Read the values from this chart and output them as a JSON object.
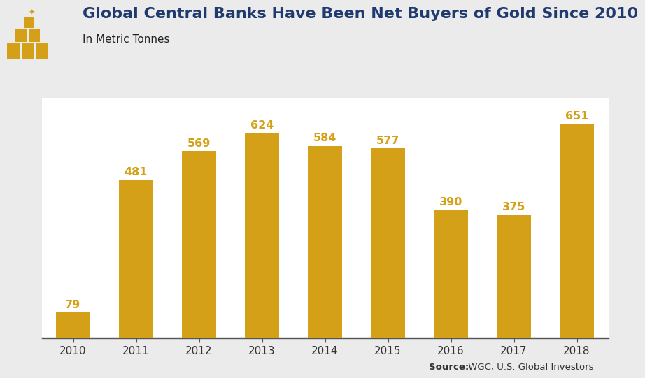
{
  "title": "Global Central Banks Have Been Net Buyers of Gold Since 2010",
  "subtitle": "In Metric Tonnes",
  "source_bold": "Source:",
  "source_rest": " WGC, U.S. Global Investors",
  "categories": [
    "2010",
    "2011",
    "2012",
    "2013",
    "2014",
    "2015",
    "2016",
    "2017",
    "2018"
  ],
  "values": [
    79,
    481,
    569,
    624,
    584,
    577,
    390,
    375,
    651
  ],
  "bar_color": "#D4A017",
  "label_color": "#D4A017",
  "title_color": "#1F3A6E",
  "subtitle_color": "#222222",
  "background_color": "#EBEBEB",
  "plot_background_color": "#FFFFFF",
  "ylim": [
    0,
    730
  ],
  "bar_width": 0.55,
  "title_fontsize": 16,
  "subtitle_fontsize": 11,
  "label_fontsize": 11.5,
  "tick_fontsize": 11,
  "source_fontsize": 9.5
}
